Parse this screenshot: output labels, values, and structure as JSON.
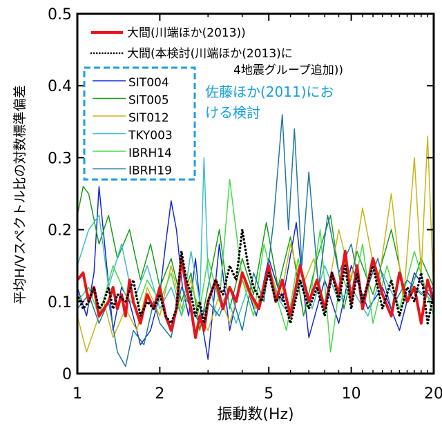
{
  "chart_data": {
    "type": "line",
    "xlabel": "振動数(Hz)",
    "ylabel": "平均H/Vスペクトル比の対数標準偏差",
    "x_scale": "log",
    "xlim": [
      1,
      20
    ],
    "ylim": [
      0,
      0.5
    ],
    "x_ticks": [
      1,
      2,
      5,
      10,
      20
    ],
    "x_tick_labels": [
      "1",
      "2",
      "5",
      "10",
      "20"
    ],
    "y_ticks": [
      0,
      0.1,
      0.2,
      0.3,
      0.4,
      0.5
    ],
    "y_tick_labels": [
      "0",
      "0.1",
      "0.2",
      "0.3",
      "0.4",
      "0.5"
    ],
    "legend_position": "top-left",
    "annotation": {
      "lines": [
        "佐藤ほか(2011)にお",
        "ける検討"
      ],
      "color": "#1aa0dc"
    },
    "legend_top": [
      {
        "label": "大間(川端ほか(2013))",
        "color": "#e8141c",
        "style": "solid"
      },
      {
        "label_lines": [
          "大間(本検討(川端ほか(2013)に",
          "4地震グループ追加))"
        ],
        "color": "#000000",
        "style": "dotted"
      }
    ],
    "series": [
      {
        "name": "SIT004",
        "color": "#1428d2",
        "width": 1.5,
        "style": "solid",
        "x": [
          1,
          1.08,
          1.15,
          1.2,
          1.28,
          1.35,
          1.45,
          1.55,
          1.7,
          1.85,
          2.0,
          2.1,
          2.2,
          2.3,
          2.42,
          2.55,
          2.7,
          2.85,
          3.0,
          3.3,
          3.6,
          4.0,
          4.5,
          5.0,
          5.6,
          6.3,
          7.0,
          8.0,
          9.0,
          10.0,
          11.5,
          13.0,
          15.0,
          17.0,
          20.0
        ],
        "y": [
          0.12,
          0.08,
          0.14,
          0.26,
          0.15,
          0.06,
          0.12,
          0.1,
          0.04,
          0.06,
          0.11,
          0.18,
          0.24,
          0.2,
          0.12,
          0.08,
          0.16,
          0.07,
          0.02,
          0.18,
          0.06,
          0.14,
          0.08,
          0.16,
          0.1,
          0.21,
          0.05,
          0.13,
          0.07,
          0.15,
          0.09,
          0.12,
          0.06,
          0.14,
          0.1
        ]
      },
      {
        "name": "SIT005",
        "color": "#14a014",
        "width": 1.5,
        "style": "solid",
        "x": [
          1,
          1.05,
          1.1,
          1.2,
          1.3,
          1.4,
          1.55,
          1.7,
          1.85,
          2.0,
          2.2,
          2.4,
          2.6,
          2.8,
          3.0,
          3.3,
          3.6,
          4.0,
          4.4,
          4.9,
          5.4,
          6.0,
          6.7,
          7.5,
          8.4,
          9.4,
          10.5,
          12.0,
          14.0,
          16.0,
          18.0,
          20.0
        ],
        "y": [
          0.22,
          0.26,
          0.25,
          0.18,
          0.22,
          0.16,
          0.2,
          0.13,
          0.18,
          0.12,
          0.16,
          0.1,
          0.14,
          0.06,
          0.12,
          0.2,
          0.09,
          0.16,
          0.11,
          0.21,
          0.12,
          0.19,
          0.08,
          0.16,
          0.22,
          0.09,
          0.17,
          0.11,
          0.2,
          0.1,
          0.16,
          0.12
        ]
      },
      {
        "name": "SIT012",
        "color": "#c8b414",
        "width": 1.5,
        "style": "solid",
        "x": [
          1,
          1.08,
          1.15,
          1.25,
          1.35,
          1.5,
          1.65,
          1.8,
          2.0,
          2.2,
          2.4,
          2.6,
          2.8,
          3.0,
          3.3,
          3.6,
          4.0,
          4.5,
          5.0,
          5.5,
          6.0,
          6.6,
          7.3,
          8.0,
          9.0,
          10.0,
          11.0,
          12.5,
          14.0,
          15.5,
          17.0,
          18.0,
          19.0,
          20.0
        ],
        "y": [
          0.08,
          0.03,
          0.06,
          0.1,
          0.05,
          0.09,
          0.06,
          0.12,
          0.08,
          0.15,
          0.09,
          0.13,
          0.08,
          0.06,
          0.11,
          0.07,
          0.13,
          0.09,
          0.15,
          0.1,
          0.18,
          0.12,
          0.16,
          0.09,
          0.2,
          0.13,
          0.23,
          0.12,
          0.25,
          0.1,
          0.3,
          0.14,
          0.33,
          0.11
        ]
      },
      {
        "name": "TKY003",
        "color": "#3cbec8",
        "width": 1.5,
        "style": "solid",
        "x": [
          1,
          1.1,
          1.2,
          1.3,
          1.45,
          1.6,
          1.8,
          2.0,
          2.2,
          2.4,
          2.6,
          2.8,
          2.9,
          3.0,
          3.2,
          3.5,
          3.8,
          4.2,
          4.6,
          5.0,
          5.5,
          6.0,
          6.6,
          7.2,
          8.0,
          9.0,
          10.0,
          11.5,
          13.0,
          15.0,
          17.0,
          20.0
        ],
        "y": [
          0.15,
          0.2,
          0.22,
          0.12,
          0.18,
          0.1,
          0.15,
          0.09,
          0.12,
          0.08,
          0.17,
          0.1,
          0.3,
          0.14,
          0.08,
          0.11,
          0.07,
          0.12,
          0.09,
          0.14,
          0.1,
          0.08,
          0.13,
          0.09,
          0.15,
          0.1,
          0.12,
          0.08,
          0.14,
          0.09,
          0.12,
          0.1
        ]
      },
      {
        "name": "IBRH14",
        "color": "#46dc46",
        "width": 1.5,
        "style": "solid",
        "x": [
          1,
          1.1,
          1.2,
          1.35,
          1.5,
          1.65,
          1.8,
          2.0,
          2.2,
          2.4,
          2.6,
          2.8,
          3.0,
          3.3,
          3.6,
          4.0,
          4.4,
          4.8,
          5.3,
          5.8,
          6.4,
          7.0,
          7.7,
          8.4,
          9.2,
          10.0,
          11.0,
          12.0,
          13.5,
          15.0,
          17.0,
          20.0
        ],
        "y": [
          0.1,
          0.12,
          0.08,
          0.15,
          0.11,
          0.09,
          0.13,
          0.1,
          0.14,
          0.08,
          0.12,
          0.09,
          0.16,
          0.1,
          0.27,
          0.13,
          0.08,
          0.18,
          0.11,
          0.06,
          0.16,
          0.09,
          0.2,
          0.03,
          0.14,
          0.1,
          0.18,
          0.07,
          0.15,
          0.09,
          0.17,
          0.08
        ]
      },
      {
        "name": "IBRH19",
        "color": "#1e78a0",
        "width": 1.5,
        "style": "solid",
        "x": [
          1,
          1.1,
          1.2,
          1.3,
          1.4,
          1.5,
          1.6,
          1.75,
          1.9,
          2.0,
          2.2,
          2.4,
          2.6,
          2.8,
          3.0,
          3.3,
          3.6,
          4.0,
          4.4,
          4.8,
          5.2,
          5.6,
          5.9,
          6.2,
          6.6,
          7.0,
          7.6,
          8.2,
          9.0,
          10.0,
          11.0,
          12.5,
          14.0,
          16.0,
          18.0,
          20.0
        ],
        "y": [
          0.09,
          0.11,
          0.07,
          0.1,
          0.03,
          0.01,
          0.06,
          0.04,
          0.1,
          0.07,
          0.05,
          0.12,
          0.09,
          0.07,
          0.1,
          0.08,
          0.12,
          0.06,
          0.14,
          0.1,
          0.21,
          0.36,
          0.2,
          0.34,
          0.15,
          0.28,
          0.12,
          0.22,
          0.14,
          0.18,
          0.1,
          0.16,
          0.09,
          0.13,
          0.11,
          0.12
        ]
      },
      {
        "name": "大間(川端ほか(2013))",
        "color": "#e8141c",
        "width": 4,
        "style": "solid",
        "x": [
          1,
          1.05,
          1.1,
          1.15,
          1.2,
          1.25,
          1.3,
          1.35,
          1.4,
          1.45,
          1.5,
          1.55,
          1.6,
          1.7,
          1.8,
          1.9,
          2.0,
          2.1,
          2.2,
          2.3,
          2.4,
          2.5,
          2.6,
          2.7,
          2.8,
          2.9,
          3.0,
          3.2,
          3.4,
          3.6,
          3.8,
          4.0,
          4.3,
          4.6,
          5.0,
          5.3,
          5.6,
          6.0,
          6.5,
          7.0,
          7.5,
          8.0,
          8.5,
          9.0,
          9.5,
          10.0,
          10.5,
          11.0,
          12.0,
          13.0,
          14.0,
          15.0,
          16.0,
          17.0,
          18.0,
          19.0,
          20.0
        ],
        "y": [
          0.13,
          0.14,
          0.1,
          0.12,
          0.08,
          0.09,
          0.1,
          0.12,
          0.09,
          0.11,
          0.08,
          0.13,
          0.1,
          0.07,
          0.11,
          0.09,
          0.12,
          0.08,
          0.06,
          0.09,
          0.16,
          0.12,
          0.09,
          0.05,
          0.08,
          0.06,
          0.1,
          0.13,
          0.09,
          0.12,
          0.1,
          0.14,
          0.11,
          0.09,
          0.15,
          0.1,
          0.13,
          0.08,
          0.15,
          0.1,
          0.13,
          0.09,
          0.14,
          0.11,
          0.17,
          0.1,
          0.15,
          0.09,
          0.16,
          0.11,
          0.08,
          0.14,
          0.1,
          0.12,
          0.07,
          0.13,
          0.1
        ]
      },
      {
        "name": "大間(本検討(川端ほか(2013)に4地震グループ追加))",
        "color": "#000000",
        "width": 3.5,
        "style": "dotted",
        "x": [
          1,
          1.05,
          1.1,
          1.15,
          1.2,
          1.25,
          1.3,
          1.35,
          1.4,
          1.5,
          1.6,
          1.7,
          1.8,
          1.9,
          2.0,
          2.1,
          2.2,
          2.3,
          2.4,
          2.5,
          2.6,
          2.7,
          2.8,
          2.9,
          3.0,
          3.2,
          3.4,
          3.6,
          3.8,
          4.0,
          4.2,
          4.4,
          4.7,
          5.0,
          5.3,
          5.6,
          6.0,
          6.5,
          7.0,
          7.5,
          8.0,
          8.5,
          9.0,
          9.5,
          10.0,
          10.5,
          11.0,
          12.0,
          13.0,
          14.0,
          15.0,
          16.0,
          17.0,
          18.0,
          19.0,
          20.0
        ],
        "y": [
          0.11,
          0.09,
          0.1,
          0.12,
          0.09,
          0.1,
          0.12,
          0.09,
          0.11,
          0.1,
          0.13,
          0.08,
          0.1,
          0.09,
          0.11,
          0.08,
          0.07,
          0.09,
          0.17,
          0.13,
          0.11,
          0.08,
          0.1,
          0.07,
          0.1,
          0.13,
          0.11,
          0.15,
          0.13,
          0.2,
          0.15,
          0.12,
          0.1,
          0.14,
          0.1,
          0.11,
          0.07,
          0.13,
          0.09,
          0.12,
          0.08,
          0.14,
          0.1,
          0.15,
          0.09,
          0.14,
          0.1,
          0.15,
          0.09,
          0.13,
          0.08,
          0.12,
          0.1,
          0.14,
          0.07,
          0.11
        ]
      }
    ]
  }
}
